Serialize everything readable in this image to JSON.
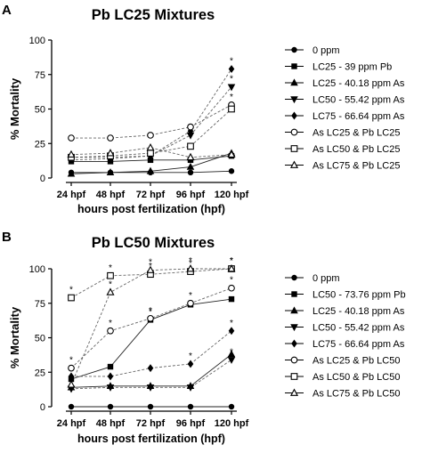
{
  "chart_data": [
    {
      "panel_label": "A",
      "type": "line",
      "title": "Pb LC25 Mixtures",
      "xlabel": "hours post fertilization (hpf)",
      "ylabel": "% Mortality",
      "categories": [
        "24 hpf",
        "48 hpf",
        "72 hpf",
        "96 hpf",
        "120 hpf"
      ],
      "ylim": [
        0,
        100
      ],
      "yticks": [
        0,
        25,
        50,
        75,
        100
      ],
      "legend_position": "right",
      "series": [
        {
          "name": "0 ppm",
          "marker": "circle-filled",
          "values": [
            4,
            4,
            4,
            4,
            5
          ],
          "stars": [
            false,
            false,
            false,
            false,
            false
          ]
        },
        {
          "name": "LC25 - 39 ppm Pb",
          "marker": "square-filled",
          "values": [
            12,
            12,
            13,
            13,
            16
          ],
          "stars": [
            false,
            false,
            false,
            false,
            false
          ]
        },
        {
          "name": "LC25 - 40.18 ppm As",
          "marker": "triangle-up-filled",
          "values": [
            3,
            4,
            5,
            8,
            18
          ],
          "stars": [
            false,
            false,
            false,
            false,
            false
          ]
        },
        {
          "name": "LC50 - 55.42 ppm As",
          "marker": "triangle-down-filled",
          "values": [
            13,
            14,
            16,
            31,
            66
          ],
          "stars": [
            false,
            false,
            false,
            false,
            true
          ]
        },
        {
          "name": "LC75 - 66.64 ppm As",
          "marker": "diamond-filled",
          "values": [
            15,
            15,
            16,
            34,
            79
          ],
          "stars": [
            false,
            false,
            false,
            false,
            true
          ]
        },
        {
          "name": "As LC25 & Pb LC25",
          "marker": "circle-open",
          "values": [
            29,
            29,
            31,
            37,
            53
          ],
          "stars": [
            false,
            false,
            false,
            false,
            true
          ]
        },
        {
          "name": "As LC50 & Pb LC25",
          "marker": "square-open",
          "values": [
            15,
            16,
            18,
            23,
            50
          ],
          "stars": [
            false,
            false,
            false,
            false,
            false
          ]
        },
        {
          "name": "As LC75 & Pb LC25",
          "marker": "triangle-up-open",
          "values": [
            17,
            18,
            22,
            15,
            17
          ],
          "stars": [
            false,
            false,
            false,
            false,
            false
          ]
        }
      ]
    },
    {
      "panel_label": "B",
      "type": "line",
      "title": "Pb LC50 Mixtures",
      "xlabel": "hours post fertilization (hpf)",
      "ylabel": "% Mortality",
      "categories": [
        "24 hpf",
        "48 hpf",
        "72 hpf",
        "96 hpf",
        "120 hpf"
      ],
      "ylim": [
        0,
        100
      ],
      "yticks": [
        0,
        25,
        50,
        75,
        100
      ],
      "legend_position": "right",
      "series": [
        {
          "name": "0 ppm",
          "marker": "circle-filled",
          "values": [
            0,
            0,
            0,
            0,
            0
          ],
          "stars": [
            false,
            false,
            false,
            false,
            false
          ]
        },
        {
          "name": "LC50 - 73.76 ppm Pb",
          "marker": "square-filled",
          "values": [
            20,
            29,
            63,
            74,
            78
          ],
          "stars": [
            false,
            false,
            true,
            false,
            false
          ]
        },
        {
          "name": "LC25 - 40.18 ppm As",
          "marker": "triangle-up-filled",
          "values": [
            14,
            15,
            15,
            15,
            38
          ],
          "stars": [
            false,
            false,
            false,
            false,
            false
          ]
        },
        {
          "name": "LC50 - 55.42 ppm As",
          "marker": "triangle-down-filled",
          "values": [
            13,
            14,
            14,
            14,
            34
          ],
          "stars": [
            false,
            false,
            false,
            false,
            true
          ]
        },
        {
          "name": "LC75 - 66.64 ppm As",
          "marker": "diamond-filled",
          "values": [
            22,
            22,
            28,
            31,
            55
          ],
          "stars": [
            false,
            false,
            false,
            true,
            true
          ]
        },
        {
          "name": "As LC25 & Pb LC50",
          "marker": "circle-open",
          "values": [
            28,
            55,
            64,
            75,
            86
          ],
          "stars": [
            true,
            true,
            true,
            true,
            true
          ]
        },
        {
          "name": "As LC50 & Pb LC50",
          "marker": "square-open",
          "values": [
            79,
            95,
            96,
            98,
            100
          ],
          "stars": [
            true,
            true,
            true,
            true,
            true
          ]
        },
        {
          "name": "As LC75 & Pb LC50",
          "marker": "triangle-up-open",
          "values": [
            16,
            83,
            99,
            100,
            100
          ],
          "stars": [
            false,
            true,
            true,
            true,
            true
          ]
        }
      ]
    }
  ]
}
